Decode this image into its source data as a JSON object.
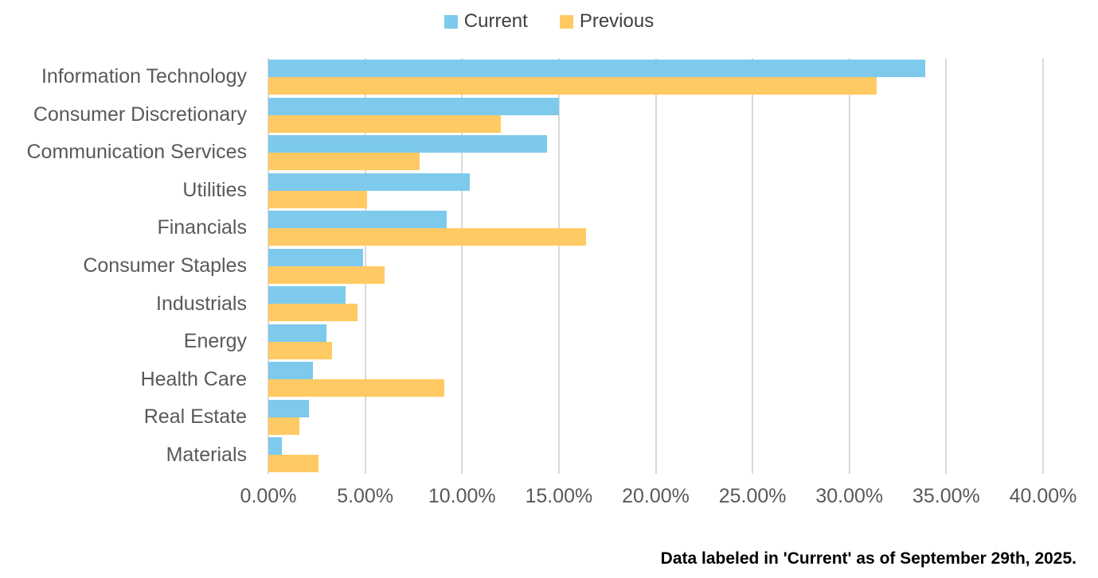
{
  "legend": {
    "items": [
      {
        "label": "Current",
        "color": "#7DCAEC"
      },
      {
        "label": "Previous",
        "color": "#FFCA63"
      }
    ]
  },
  "footnote": "Data labeled in 'Current' as of September 29th, 2025.",
  "colors": {
    "current_bar": "#7DCAEC",
    "previous_bar": "#FFCA63",
    "gridline": "#D9D9D9",
    "axis_text": "#595959",
    "legend_text": "#404040",
    "footnote_text": "#000000",
    "background": "#FFFFFF"
  },
  "chart_data": {
    "type": "bar",
    "orientation": "horizontal",
    "title": "",
    "xlabel": "",
    "ylabel": "",
    "grid": true,
    "legend_position": "top-center",
    "xlim": [
      0,
      40
    ],
    "x_tick_step": 5,
    "x_tick_labels": [
      "0.00%",
      "5.00%",
      "10.00%",
      "15.00%",
      "20.00%",
      "25.00%",
      "30.00%",
      "35.00%",
      "40.00%"
    ],
    "categories": [
      "Information Technology",
      "Consumer Discretionary",
      "Communication Services",
      "Utilities",
      "Financials",
      "Consumer Staples",
      "Industrials",
      "Energy",
      "Health Care",
      "Real Estate",
      "Materials"
    ],
    "series": [
      {
        "name": "Current",
        "color": "#7DCAEC",
        "values": [
          33.9,
          15.0,
          14.4,
          10.4,
          9.2,
          4.9,
          4.0,
          3.0,
          2.3,
          2.1,
          0.7
        ]
      },
      {
        "name": "Previous",
        "color": "#FFCA63",
        "values": [
          31.4,
          12.0,
          7.8,
          5.1,
          16.4,
          6.0,
          4.6,
          3.3,
          9.1,
          1.6,
          2.6
        ]
      }
    ]
  }
}
